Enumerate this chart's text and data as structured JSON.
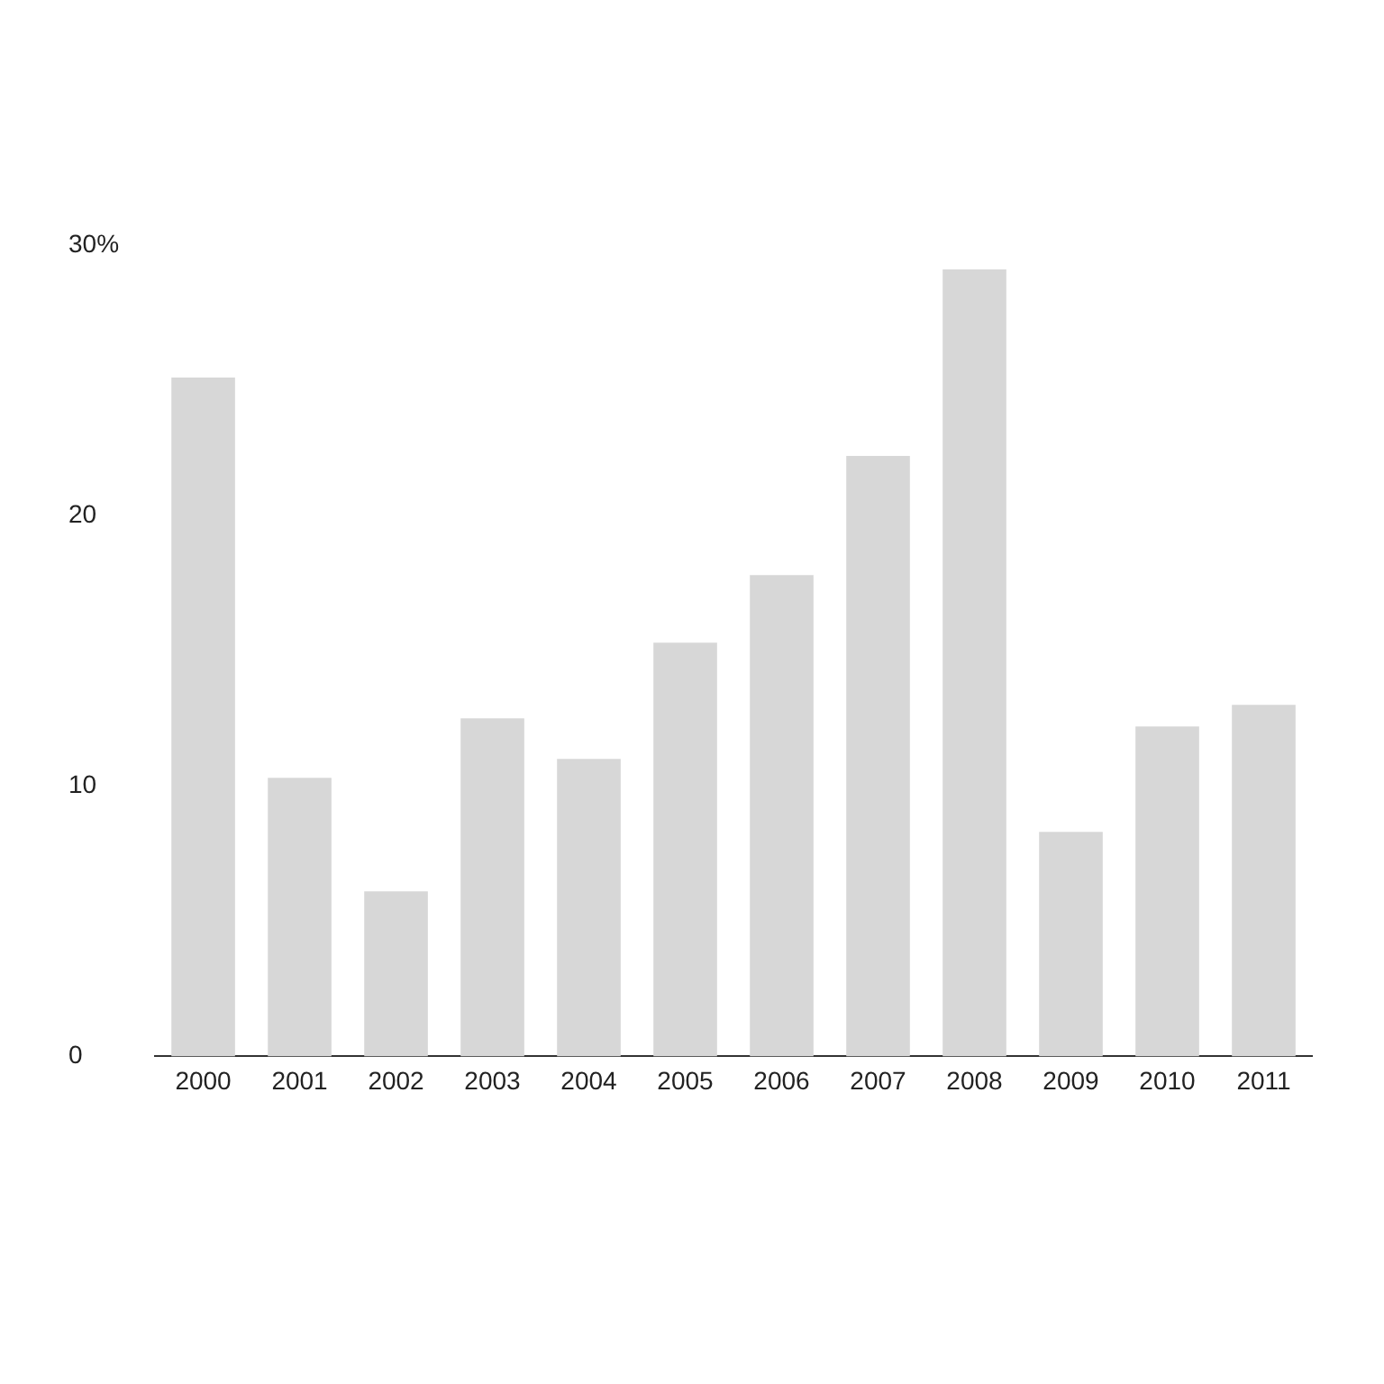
{
  "chart_data": {
    "type": "bar",
    "categories": [
      "2000",
      "2001",
      "2002",
      "2003",
      "2004",
      "2005",
      "2006",
      "2007",
      "2008",
      "2009",
      "2010",
      "2011"
    ],
    "values": [
      25.1,
      10.3,
      6.1,
      12.5,
      11.0,
      15.3,
      17.8,
      22.2,
      29.1,
      8.3,
      12.2,
      13.0
    ],
    "color": "#d7d7d7",
    "ylim": [
      0,
      30
    ],
    "yticks": [
      {
        "value": 30,
        "label": "30%"
      },
      20,
      10,
      0
    ],
    "grid": false,
    "legend": false
  }
}
